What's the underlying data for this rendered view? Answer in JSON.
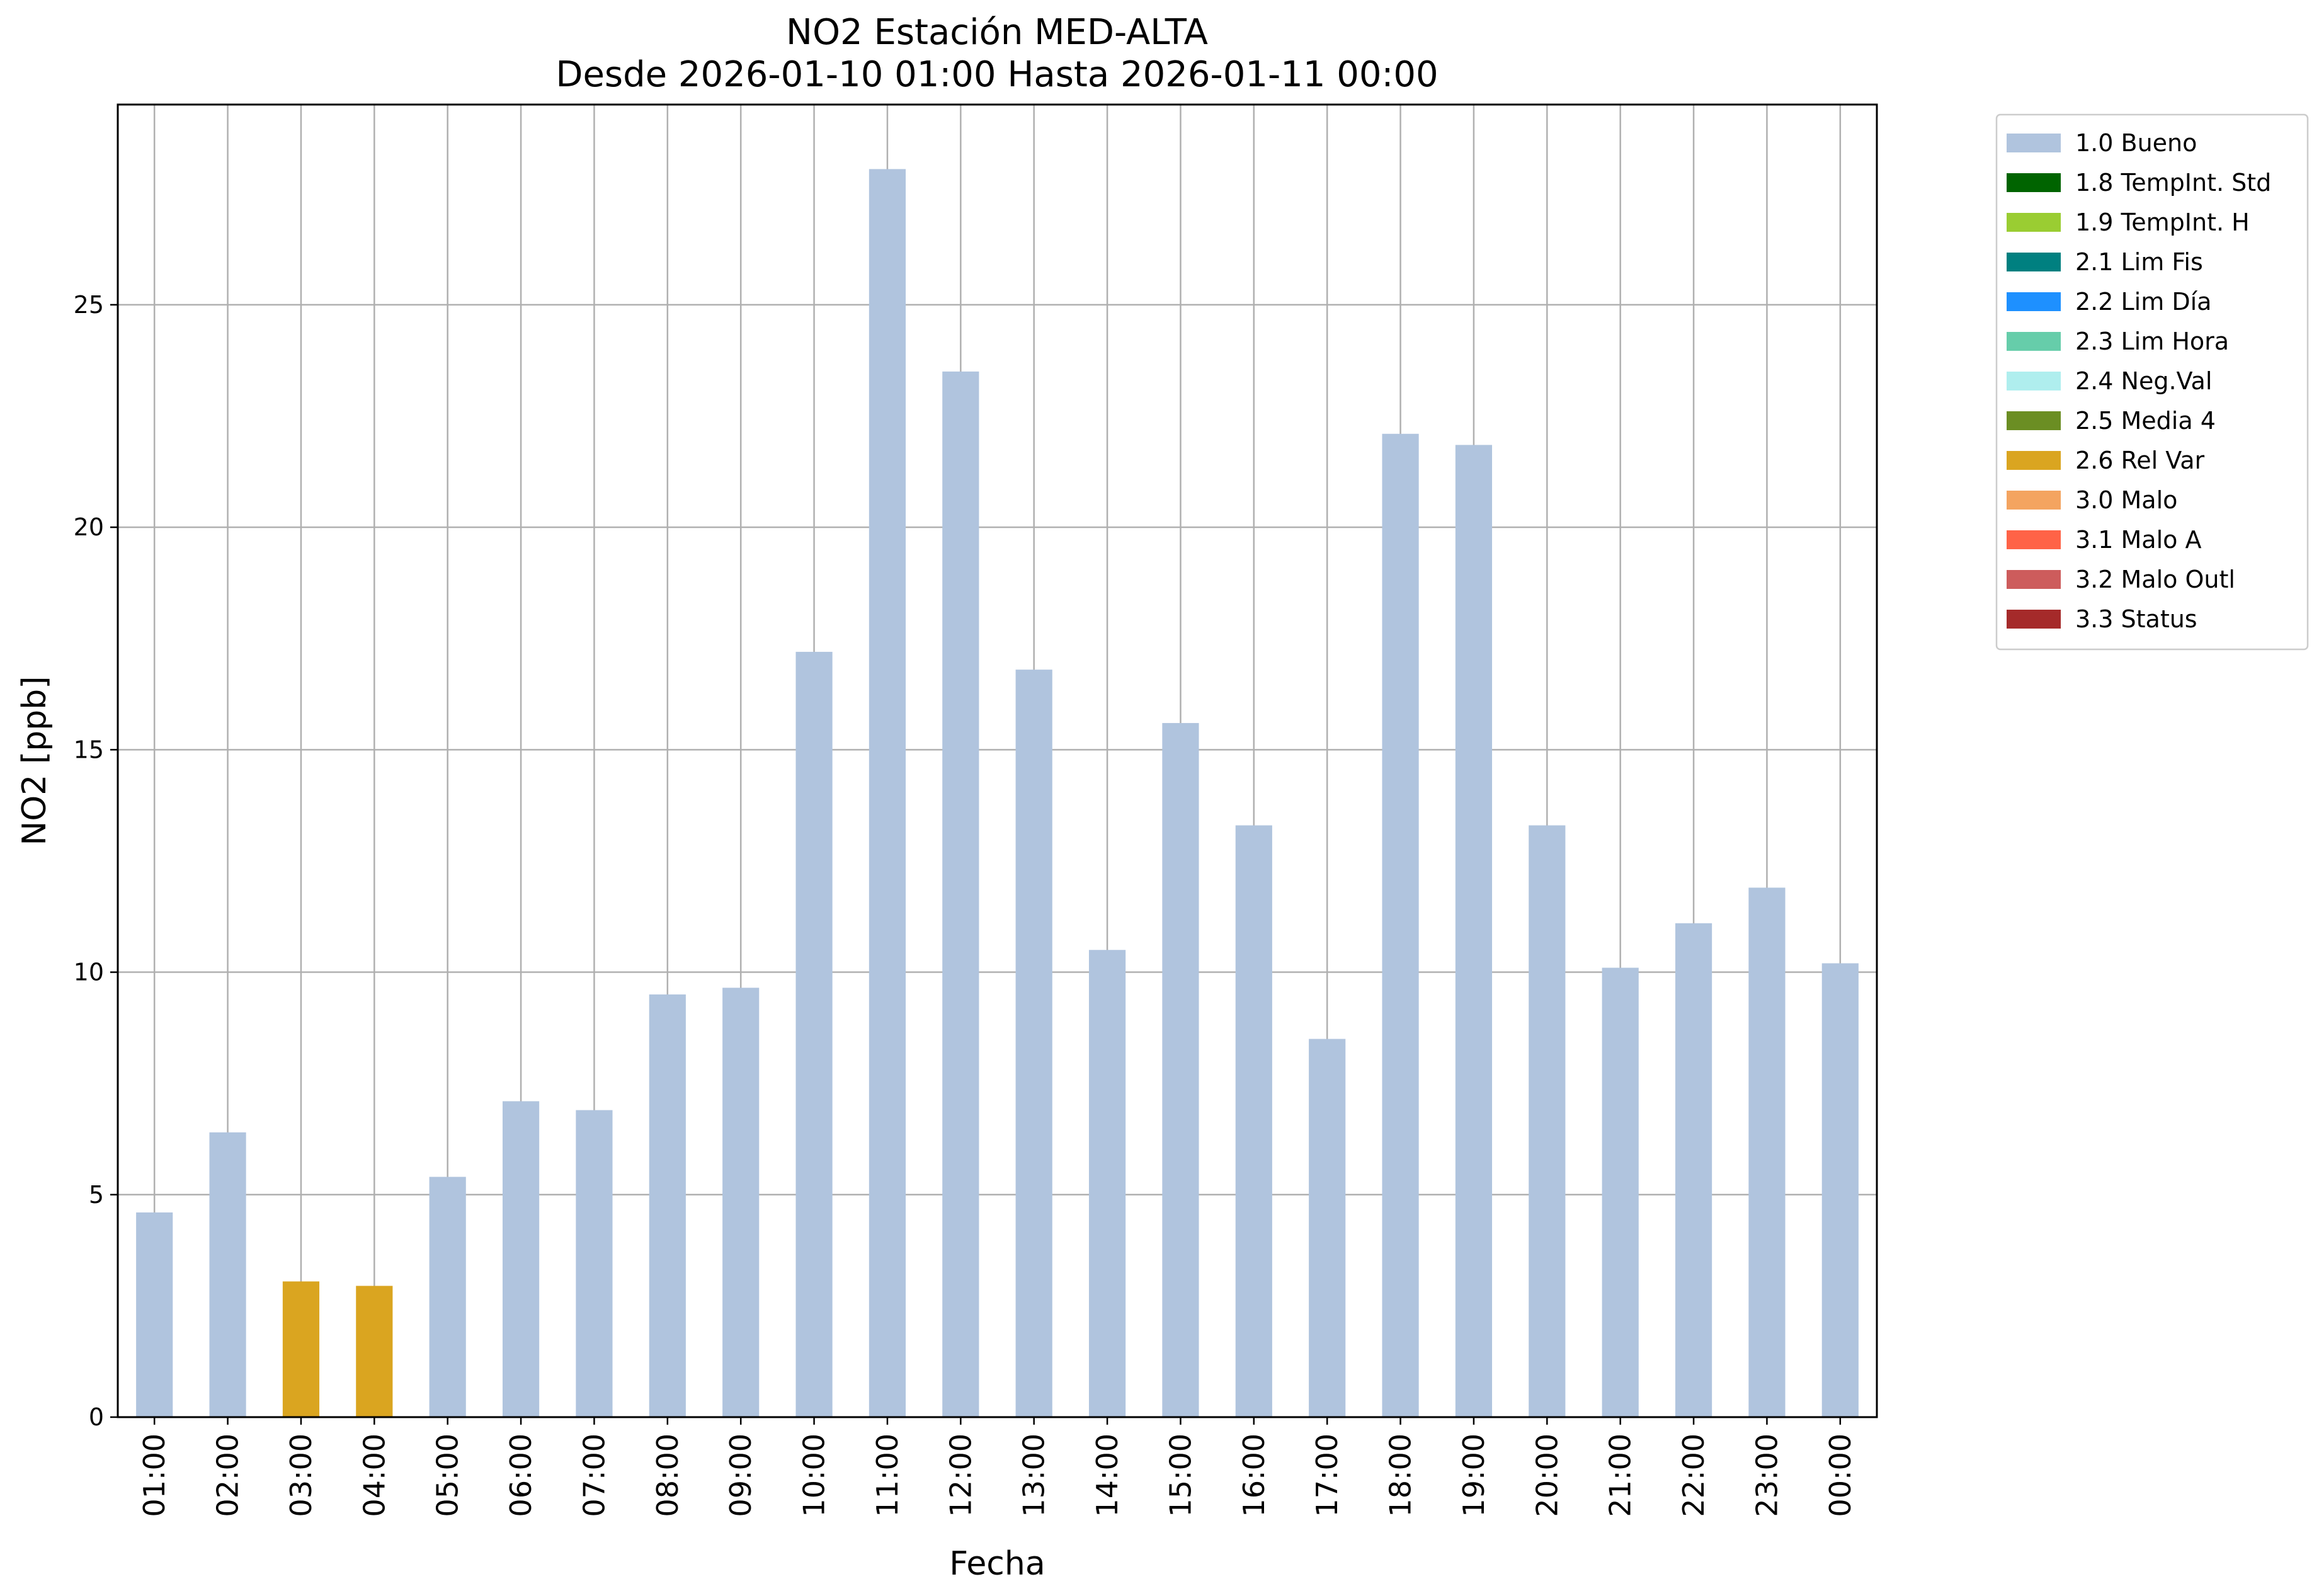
{
  "chart_data": {
    "type": "bar",
    "title": "NO2 Estación MED-ALTA",
    "subtitle": "Desde 2026-01-10 01:00 Hasta 2026-01-11 00:00",
    "xlabel": "Fecha",
    "ylabel": "NO2 [ppb]",
    "ylim": [
      0,
      29.5
    ],
    "yticks": [
      0,
      5,
      10,
      15,
      20,
      25
    ],
    "grid": true,
    "legend_position": "outside-top-right",
    "categories": [
      "01:00",
      "02:00",
      "03:00",
      "04:00",
      "05:00",
      "06:00",
      "07:00",
      "08:00",
      "09:00",
      "10:00",
      "11:00",
      "12:00",
      "13:00",
      "14:00",
      "15:00",
      "16:00",
      "17:00",
      "18:00",
      "19:00",
      "20:00",
      "21:00",
      "22:00",
      "23:00",
      "00:00"
    ],
    "values": [
      4.6,
      6.4,
      3.05,
      2.95,
      5.4,
      7.1,
      6.9,
      9.5,
      9.65,
      17.2,
      28.05,
      23.5,
      16.8,
      10.5,
      15.6,
      13.3,
      8.5,
      22.1,
      21.85,
      13.3,
      10.1,
      11.1,
      11.9,
      10.2
    ],
    "flags": [
      "1.0 Bueno",
      "1.0 Bueno",
      "2.6 Rel Var",
      "2.6 Rel Var",
      "1.0 Bueno",
      "1.0 Bueno",
      "1.0 Bueno",
      "1.0 Bueno",
      "1.0 Bueno",
      "1.0 Bueno",
      "1.0 Bueno",
      "1.0 Bueno",
      "1.0 Bueno",
      "1.0 Bueno",
      "1.0 Bueno",
      "1.0 Bueno",
      "1.0 Bueno",
      "1.0 Bueno",
      "1.0 Bueno",
      "1.0 Bueno",
      "1.0 Bueno",
      "1.0 Bueno",
      "1.0 Bueno",
      "1.0 Bueno"
    ],
    "legend": [
      {
        "label": "1.0 Bueno",
        "color": "#b0c4de"
      },
      {
        "label": "1.8 TempInt. Std",
        "color": "#006400"
      },
      {
        "label": "1.9 TempInt. H",
        "color": "#9acd32"
      },
      {
        "label": "2.1 Lim Fis",
        "color": "#008080"
      },
      {
        "label": "2.2 Lim Día",
        "color": "#1e90ff"
      },
      {
        "label": "2.3 Lim Hora",
        "color": "#66cdaa"
      },
      {
        "label": "2.4 Neg.Val",
        "color": "#afeeee"
      },
      {
        "label": "2.5 Media 4",
        "color": "#6b8e23"
      },
      {
        "label": "2.6 Rel Var",
        "color": "#daa520"
      },
      {
        "label": "3.0 Malo",
        "color": "#f4a460"
      },
      {
        "label": "3.1 Malo A",
        "color": "#ff6347"
      },
      {
        "label": "3.2 Malo Outl",
        "color": "#cd5c5c"
      },
      {
        "label": "3.3 Status",
        "color": "#a52a2a"
      }
    ]
  }
}
